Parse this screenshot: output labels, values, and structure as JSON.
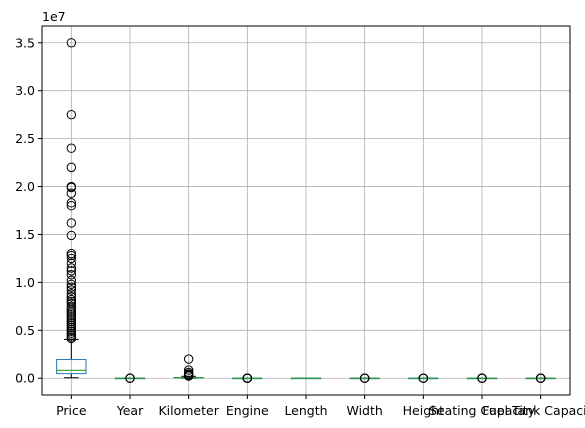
{
  "chart_data": {
    "type": "box",
    "title": "",
    "xlabel": "",
    "ylabel": "",
    "y_offset_label": "1e7",
    "y_multiplier": 10000000,
    "ylim": [
      -1750000,
      36750000
    ],
    "yticks": [
      0,
      5000000,
      10000000,
      15000000,
      20000000,
      25000000,
      30000000,
      35000000
    ],
    "ytick_labels": [
      "0.0",
      "0.5",
      "1.0",
      "1.5",
      "2.0",
      "2.5",
      "3.0",
      "3.5"
    ],
    "grid": true,
    "categories": [
      "Price",
      "Year",
      "Kilometer",
      "Engine",
      "Length",
      "Width",
      "Height",
      "Seating Capacity",
      "Fuel Tank Capacity"
    ],
    "boxes": [
      {
        "name": "Price",
        "whislo": 49000,
        "q1": 480000,
        "median": 825000,
        "q3": 1950000,
        "whishi": 4050000,
        "fliers": [
          35000000,
          27500000,
          24000000,
          22000000,
          20000000,
          19900000,
          19300000,
          18300000,
          18000000,
          16200000,
          14900000,
          13000000,
          12800000,
          12500000,
          12000000,
          11500000,
          11200000,
          10800000,
          10200000,
          9800000,
          9500000,
          9200000,
          8800000,
          8500000,
          8200000,
          8000000,
          7800000,
          7500000,
          7300000,
          7100000,
          6900000,
          6700000,
          6500000,
          6300000,
          6100000,
          5900000,
          5700000,
          5500000,
          5300000,
          5100000,
          4900000,
          4700000,
          4500000,
          4300000,
          4150000
        ]
      },
      {
        "name": "Year",
        "whislo": 2000,
        "q1": 2015,
        "median": 2017,
        "q3": 2019,
        "whishi": 2022,
        "fliers": [
          1988,
          1996,
          1998
        ]
      },
      {
        "name": "Kilometer",
        "whislo": 0,
        "q1": 29000,
        "median": 50000,
        "q3": 72000,
        "whishi": 200000,
        "fliers": [
          2000000,
          850000,
          600000,
          450000,
          350000,
          300000,
          260000,
          230000
        ]
      },
      {
        "name": "Engine",
        "whislo": 624,
        "q1": 1197,
        "median": 1498,
        "q3": 1995,
        "whishi": 3200,
        "fliers": [
          3498,
          3996,
          4395,
          5000,
          5935,
          6592
        ]
      },
      {
        "name": "Length",
        "whislo": 3099,
        "q1": 3985,
        "median": 4370,
        "q3": 4629,
        "whishi": 5569,
        "fliers": []
      },
      {
        "name": "Width",
        "whislo": 1475,
        "q1": 1695,
        "median": 1770,
        "q3": 1831,
        "whishi": 2050,
        "fliers": [
          2200,
          2400,
          2600
        ]
      },
      {
        "name": "Height",
        "whislo": 1165,
        "q1": 1485,
        "median": 1545,
        "q3": 1675,
        "whishi": 1960,
        "fliers": [
          1100,
          2000,
          2100
        ]
      },
      {
        "name": "Seating Capacity",
        "whislo": 5,
        "q1": 5,
        "median": 5,
        "q3": 5,
        "whishi": 5,
        "fliers": [
          2,
          4,
          6,
          7,
          8
        ]
      },
      {
        "name": "Fuel Tank Capacity",
        "whislo": 15,
        "q1": 42,
        "median": 50,
        "q3": 60,
        "whishi": 85,
        "fliers": [
          5,
          90,
          95,
          105
        ]
      }
    ],
    "colors": {
      "box": "#1f77b4",
      "median": "#2ca02c",
      "whisker": "#000000",
      "grid": "#b0b0b0",
      "flier": "#000000"
    }
  }
}
